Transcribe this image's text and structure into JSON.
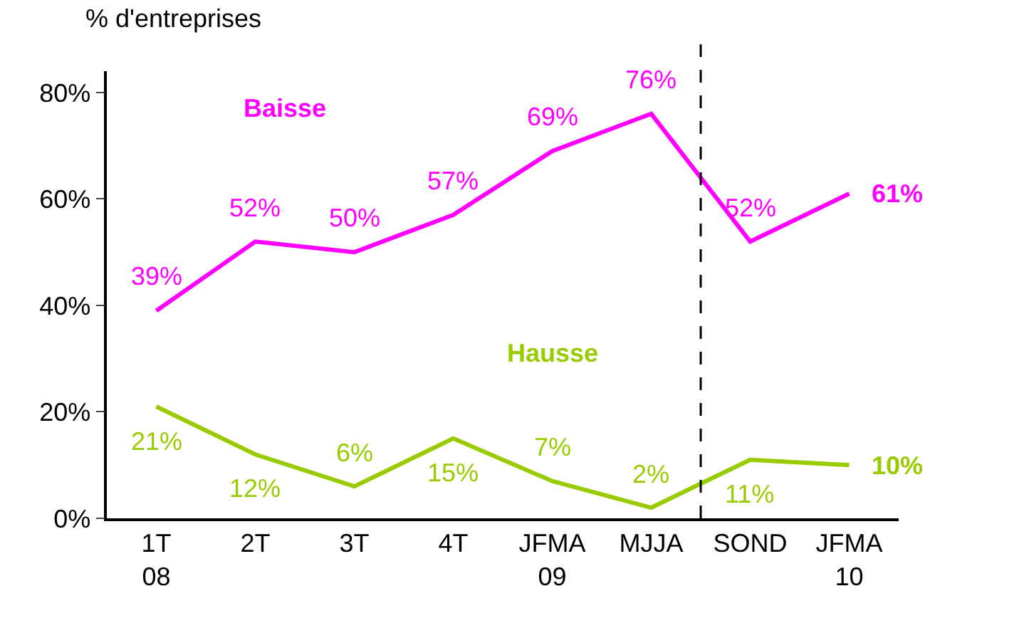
{
  "chart_data": {
    "type": "line",
    "ylabel": "% d'entreprises",
    "categories": [
      "1T\n08",
      "2T",
      "3T",
      "4T",
      "JFMA\n09",
      "MJJA",
      "SOND",
      "JFMA\n10"
    ],
    "series": [
      {
        "name": "Baisse",
        "color": "#ff00ff",
        "values": [
          39,
          52,
          50,
          57,
          69,
          76,
          52,
          61
        ],
        "value_labels": [
          "39%",
          "52%",
          "50%",
          "57%",
          "69%",
          "76%",
          "52%",
          "61%"
        ]
      },
      {
        "name": "Hausse",
        "color": "#99cc00",
        "values": [
          21,
          12,
          6,
          15,
          7,
          2,
          11,
          10
        ],
        "value_labels": [
          "21%",
          "12%",
          "6%",
          "15%",
          "7%",
          "2%",
          "11%",
          "10%"
        ]
      }
    ],
    "ylim": [
      0,
      84
    ],
    "yticks": [
      {
        "value": 0,
        "label": "0%"
      },
      {
        "value": 20,
        "label": "20%"
      },
      {
        "value": 40,
        "label": "40%"
      },
      {
        "value": 60,
        "label": "60%"
      },
      {
        "value": 80,
        "label": "80%"
      }
    ],
    "grid": false,
    "legend": false,
    "marker": "none",
    "line_style": "solid"
  }
}
